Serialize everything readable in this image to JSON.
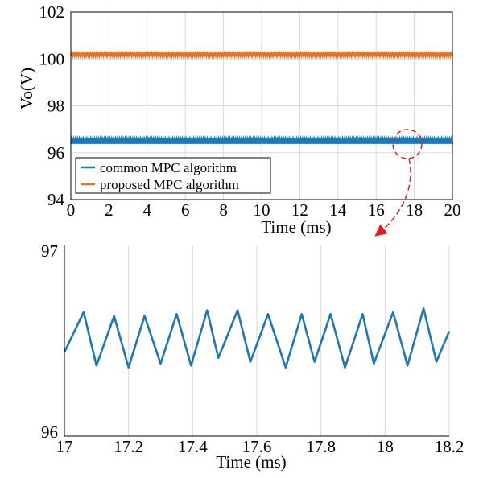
{
  "chart_data": [
    {
      "type": "line",
      "panel": "top",
      "title": "",
      "xlabel": "Time (ms)",
      "ylabel": "Vo(V)",
      "xlim": [
        0,
        20
      ],
      "ylim": [
        94,
        102
      ],
      "xticks": [
        0,
        2,
        4,
        6,
        8,
        10,
        12,
        14,
        16,
        18,
        20
      ],
      "yticks": [
        94,
        96,
        98,
        100,
        102
      ],
      "grid": true,
      "legend_position": "bottom-left",
      "series": [
        {
          "name": "common MPC algorithm",
          "color": "#1f77b4",
          "mean": 96.5,
          "ripple_amplitude": 0.12,
          "ripple_period_ms": 0.1
        },
        {
          "name": "proposed MPC algorithm",
          "color": "#e2742a",
          "mean": 100.2,
          "ripple_amplitude": 0.07,
          "ripple_period_ms": 0.1
        }
      ]
    },
    {
      "type": "line",
      "panel": "bottom",
      "title": "",
      "xlabel": "Time (ms)",
      "ylabel": "",
      "xlim": [
        17,
        18.2
      ],
      "ylim": [
        96,
        97
      ],
      "xticks": [
        17,
        17.2,
        17.4,
        17.6,
        17.8,
        18,
        18.2
      ],
      "yticks": [
        96,
        97
      ],
      "grid": true,
      "series": [
        {
          "name": "",
          "color": "#1f77b4",
          "x": [
            17.0,
            17.06,
            17.1,
            17.155,
            17.2,
            17.25,
            17.3,
            17.35,
            17.395,
            17.445,
            17.48,
            17.54,
            17.58,
            17.635,
            17.69,
            17.74,
            17.78,
            17.83,
            17.875,
            17.93,
            17.965,
            18.025,
            18.07,
            18.12,
            18.16,
            18.2
          ],
          "y": [
            96.44,
            96.65,
            96.37,
            96.63,
            96.36,
            96.63,
            96.38,
            96.64,
            96.37,
            96.66,
            96.41,
            96.66,
            96.39,
            96.64,
            96.36,
            96.64,
            96.39,
            96.64,
            96.36,
            96.64,
            96.38,
            96.65,
            96.37,
            96.67,
            96.39,
            96.55
          ]
        }
      ]
    }
  ]
}
